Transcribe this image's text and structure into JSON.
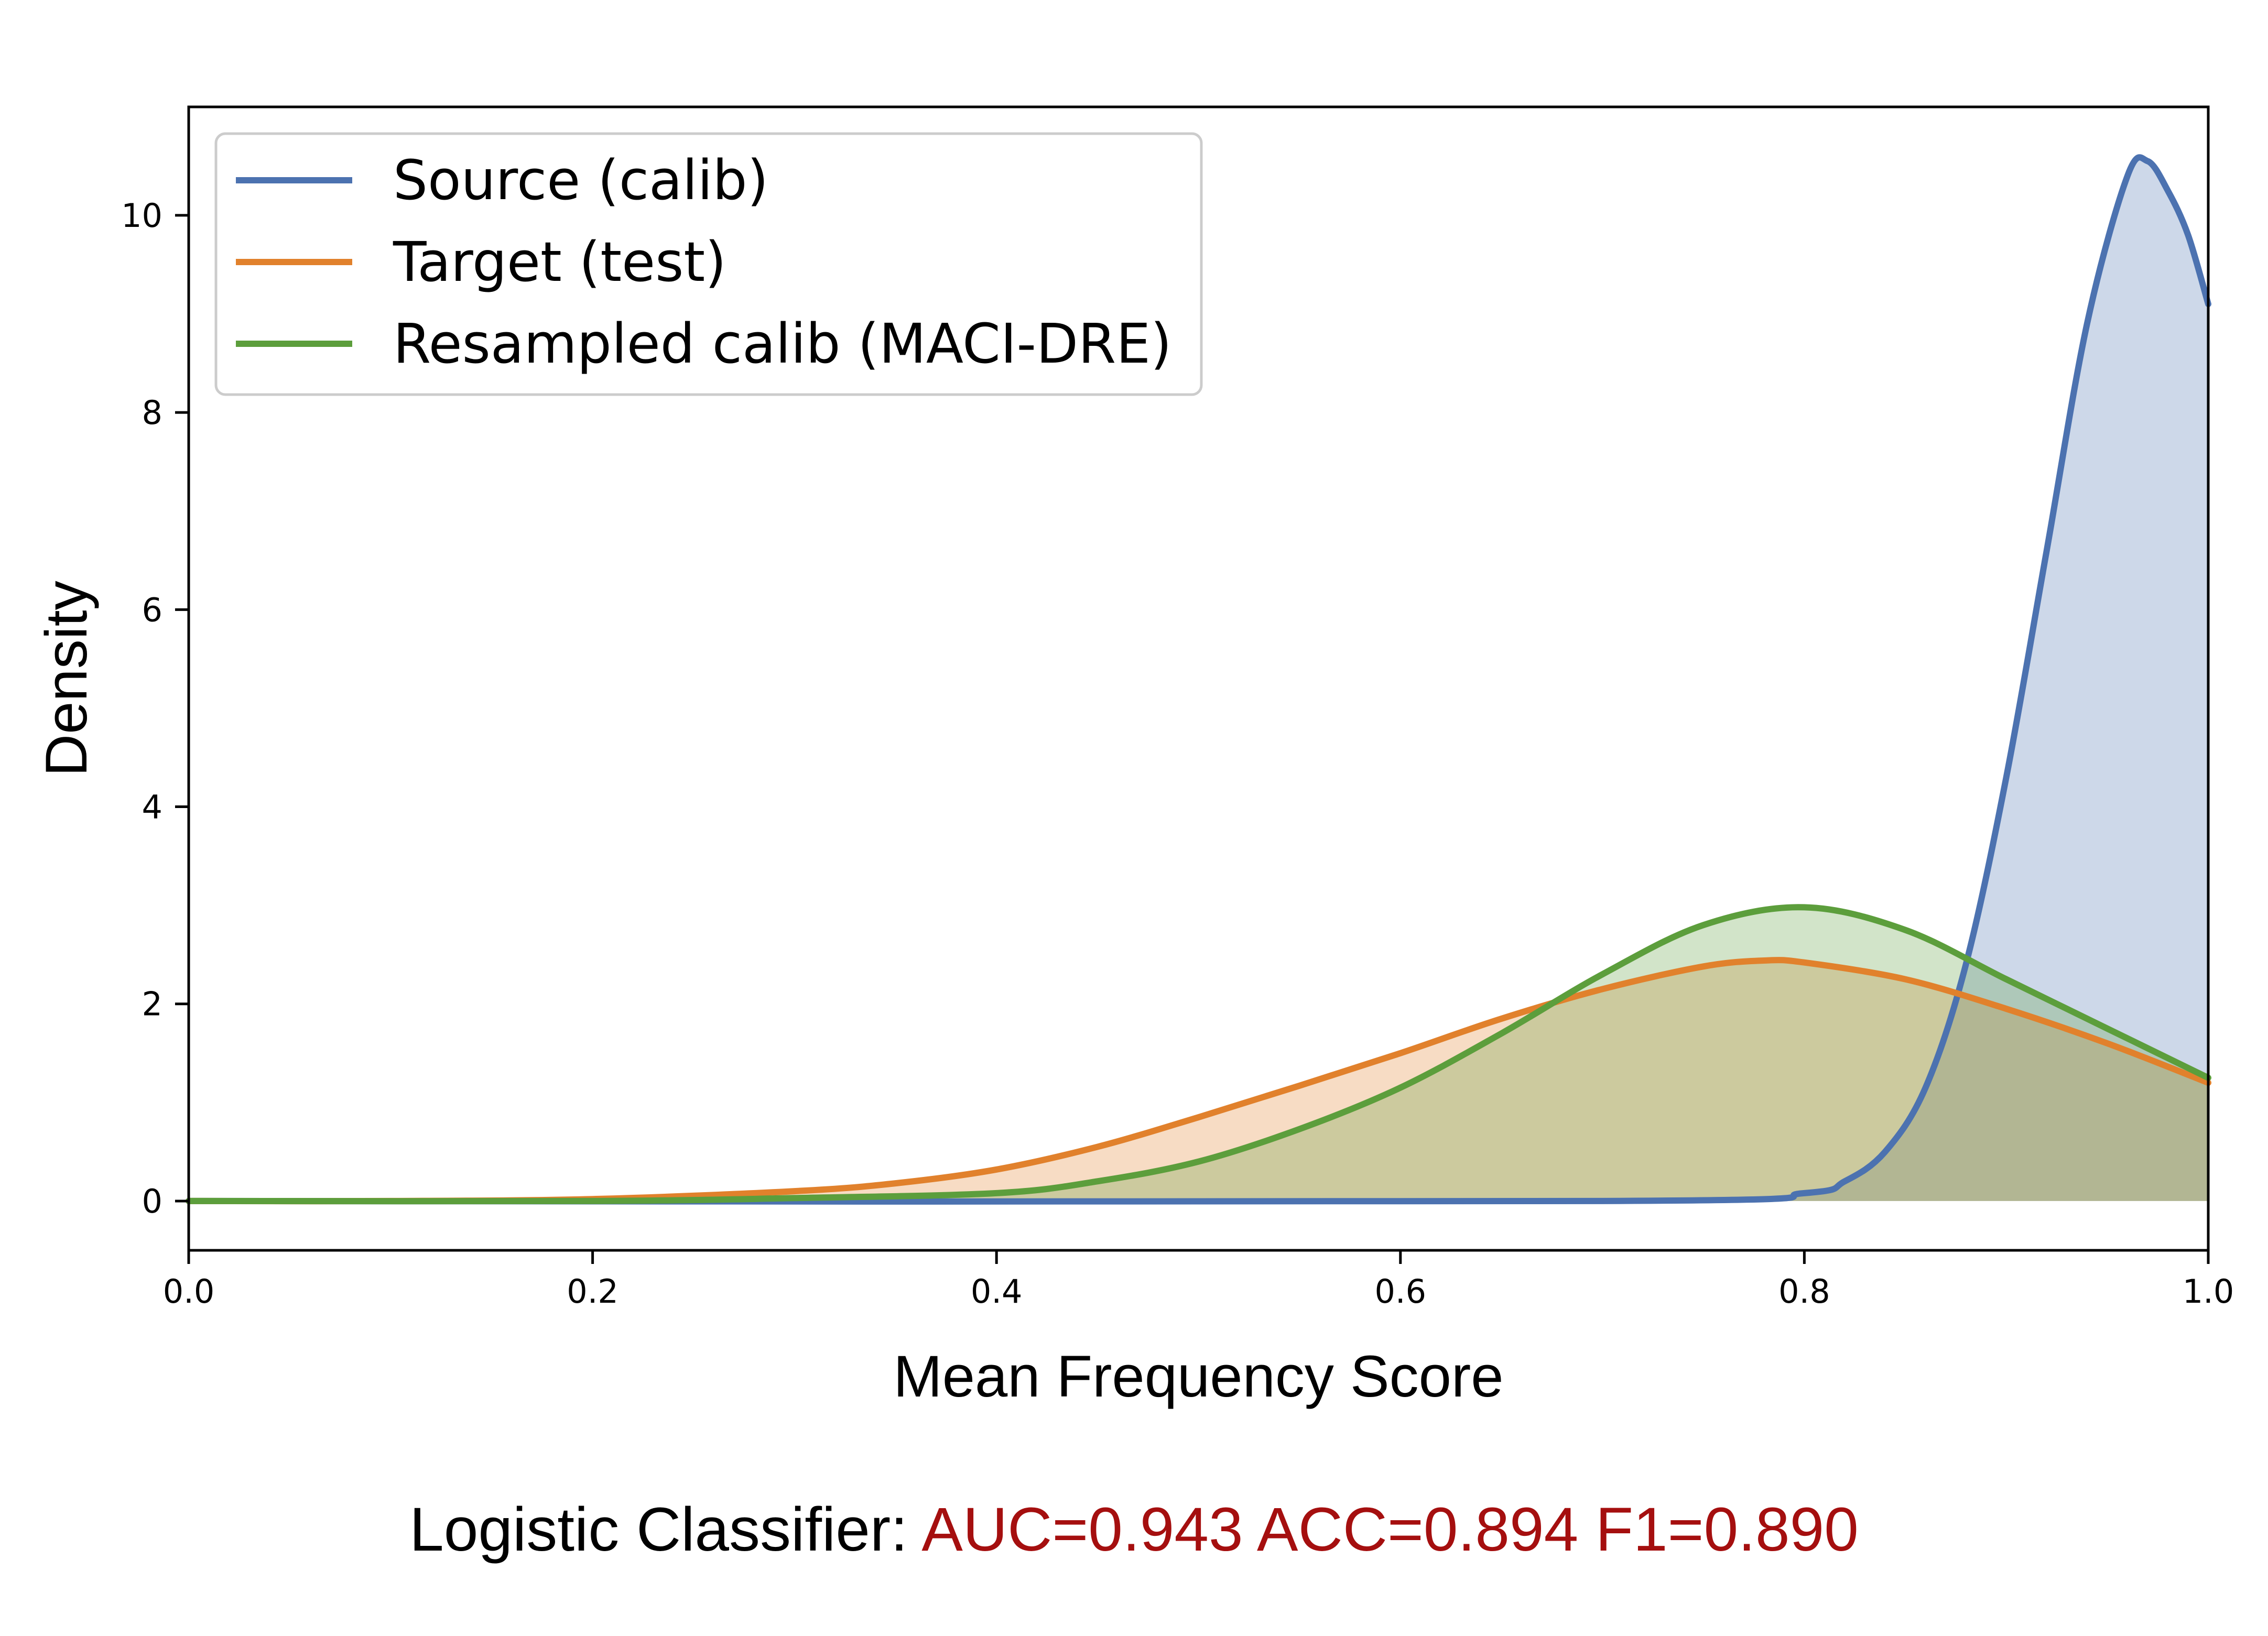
{
  "chart_data": {
    "type": "area",
    "xlabel": "Mean Frequency Score",
    "ylabel": "Density",
    "xlim": [
      0.0,
      1.0
    ],
    "ylim": [
      -0.5,
      11.1
    ],
    "xticks": [
      "0.0",
      "0.2",
      "0.4",
      "0.6",
      "0.8",
      "1.0"
    ],
    "yticks": [
      "0",
      "2",
      "4",
      "6",
      "8",
      "10"
    ],
    "grid": false,
    "legend_position": "top-left",
    "series": [
      {
        "name": "Source (calib)",
        "color": "#4c72b0",
        "fill": "#c9d8ec",
        "x": [
          0.0,
          0.7,
          0.8,
          0.82,
          0.84,
          0.86,
          0.88,
          0.9,
          0.92,
          0.94,
          0.96,
          0.97,
          0.98,
          0.99,
          1.0
        ],
        "y": [
          0.0,
          0.0,
          0.08,
          0.2,
          0.5,
          1.15,
          2.4,
          4.3,
          6.6,
          8.9,
          10.4,
          10.55,
          10.25,
          9.8,
          9.1
        ]
      },
      {
        "name": "Target (test)",
        "color": "#e1812c",
        "fill": "#f7d7b9",
        "x": [
          0.0,
          0.1,
          0.2,
          0.3,
          0.35,
          0.4,
          0.45,
          0.5,
          0.55,
          0.6,
          0.65,
          0.7,
          0.75,
          0.78,
          0.8,
          0.85,
          0.9,
          0.95,
          1.0
        ],
        "y": [
          0.0,
          0.0,
          0.02,
          0.1,
          0.18,
          0.32,
          0.55,
          0.85,
          1.17,
          1.5,
          1.85,
          2.15,
          2.38,
          2.44,
          2.42,
          2.25,
          1.95,
          1.6,
          1.2
        ]
      },
      {
        "name": "Resampled calib (MACI-DRE)",
        "color": "#5c9e3c",
        "fill": "#cfe6c2",
        "x": [
          0.0,
          0.2,
          0.3,
          0.4,
          0.45,
          0.5,
          0.55,
          0.6,
          0.65,
          0.7,
          0.75,
          0.8,
          0.85,
          0.9,
          0.95,
          1.0
        ],
        "y": [
          0.0,
          0.0,
          0.03,
          0.08,
          0.2,
          0.4,
          0.73,
          1.15,
          1.7,
          2.3,
          2.8,
          2.98,
          2.75,
          2.25,
          1.75,
          1.25
        ]
      }
    ]
  },
  "footer": {
    "label": "Logistic Classifier:",
    "metrics": "AUC=0.943 ACC=0.894 F1=0.890",
    "metrics_color": "#a50f0f"
  }
}
